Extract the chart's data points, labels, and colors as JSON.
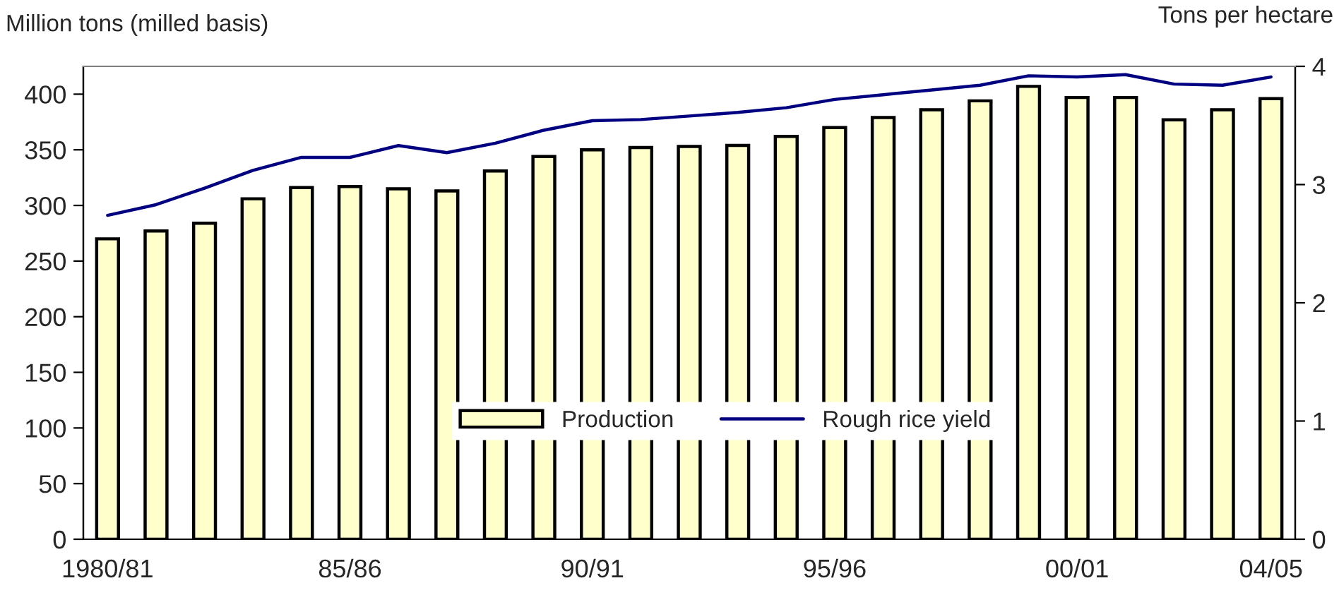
{
  "chart_data": {
    "type": "bar",
    "ylabel": "Million tons (milled basis)",
    "y2label": "Tons per hectare",
    "categories": [
      "1980/81",
      null,
      null,
      null,
      null,
      "85/86",
      null,
      null,
      null,
      null,
      "90/91",
      null,
      null,
      null,
      null,
      "95/96",
      null,
      null,
      null,
      null,
      "00/01",
      null,
      null,
      null,
      "04/05"
    ],
    "series": [
      {
        "name": "Production",
        "color": "#ffffcc",
        "values": [
          270,
          277,
          284,
          306,
          316,
          317,
          315,
          313,
          331,
          344,
          350,
          352,
          353,
          354,
          362,
          370,
          379,
          386,
          394,
          407,
          397,
          397,
          377,
          386,
          396
        ]
      },
      {
        "name": "Rough rice yield",
        "type": "line",
        "axis": "y2",
        "color": "#000080",
        "values": [
          2.74,
          2.83,
          2.97,
          3.12,
          3.23,
          3.23,
          3.33,
          3.27,
          3.35,
          3.46,
          3.54,
          3.55,
          3.58,
          3.61,
          3.65,
          3.72,
          3.76,
          3.8,
          3.84,
          3.92,
          3.91,
          3.93,
          3.85,
          3.84,
          3.91
        ]
      }
    ],
    "ylim": [
      0,
      425
    ],
    "yticks": [
      0,
      50,
      100,
      150,
      200,
      250,
      300,
      350,
      400
    ],
    "y2lim": [
      0,
      4
    ],
    "y2ticks": [
      0,
      1,
      2,
      3,
      4
    ],
    "legend": "center",
    "grid": false,
    "marker": "none",
    "line_style": "solid"
  }
}
